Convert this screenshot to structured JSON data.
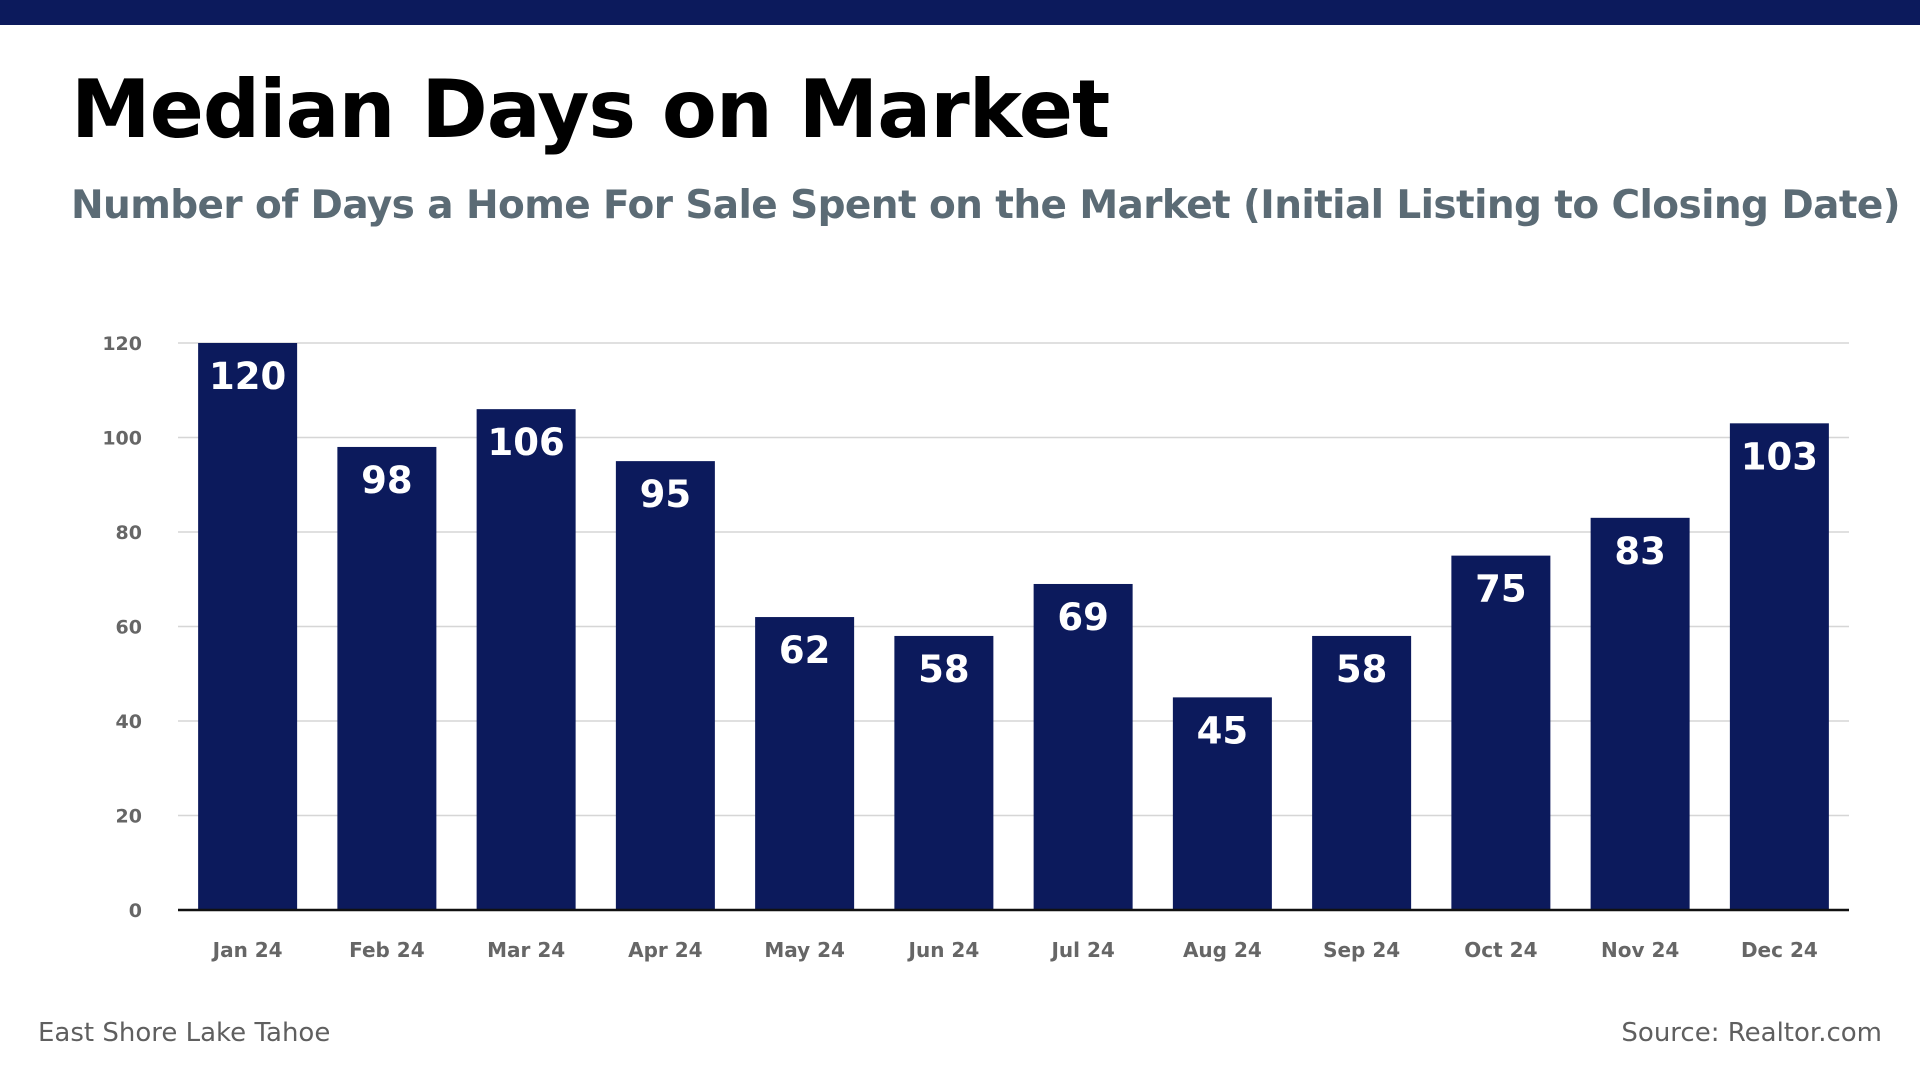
{
  "header": {
    "title": "Median Days on Market",
    "subtitle": "Number of Days a Home For Sale Spent on the Market (Initial Listing to Closing Date)"
  },
  "footer": {
    "location": "East Shore Lake Tahoe",
    "source": "Source: Realtor.com"
  },
  "colors": {
    "bar": "#0c1a5c",
    "top_bar": "#0c1a5c",
    "subtitle": "#5b6b75",
    "grid": "#d6d6d6",
    "axis": "#111111",
    "tick_label": "#666666",
    "data_label": "#ffffff"
  },
  "chart_data": {
    "type": "bar",
    "title": "Median Days on Market",
    "subtitle": "Number of Days a Home For Sale Spent on the Market (Initial Listing to Closing Date)",
    "categories": [
      "Jan 24",
      "Feb 24",
      "Mar 24",
      "Apr 24",
      "May 24",
      "Jun 24",
      "Jul 24",
      "Aug 24",
      "Sep 24",
      "Oct 24",
      "Nov 24",
      "Dec 24"
    ],
    "values": [
      120,
      98,
      106,
      95,
      62,
      58,
      69,
      45,
      58,
      75,
      83,
      103
    ],
    "y_ticks": [
      0,
      20,
      40,
      60,
      80,
      100,
      120
    ],
    "ylim": [
      0,
      120
    ],
    "xlabel": "",
    "ylabel": "",
    "grid": true,
    "legend": "none",
    "data_labels": true
  }
}
